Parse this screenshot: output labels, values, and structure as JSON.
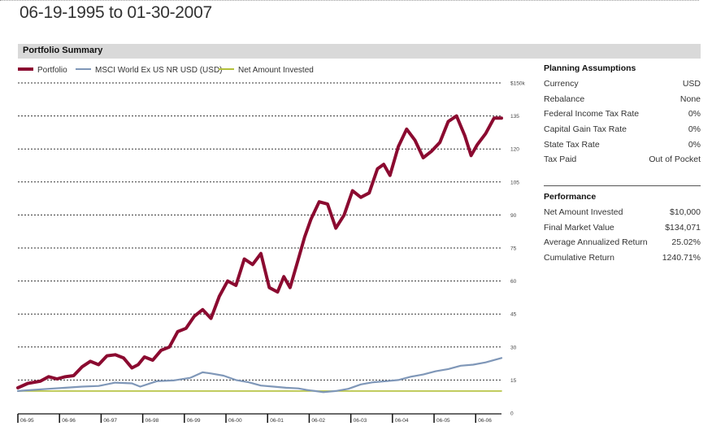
{
  "date_range": "06-19-1995 to 01-30-2007",
  "summary_title": "Portfolio Summary",
  "legend": [
    {
      "label": "Portfolio",
      "color": "#8b0a30"
    },
    {
      "label": "MSCI World Ex US NR USD (USD)",
      "color": "#7f97b8"
    },
    {
      "label": "Net Amount Invested",
      "color": "#b3c03a"
    }
  ],
  "planning": {
    "title": "Planning Assumptions",
    "rows": [
      {
        "label": "Currency",
        "value": "USD"
      },
      {
        "label": "Rebalance",
        "value": "None"
      },
      {
        "label": "Federal Income Tax Rate",
        "value": "0%"
      },
      {
        "label": "Capital Gain Tax Rate",
        "value": "0%"
      },
      {
        "label": "State Tax Rate",
        "value": "0%"
      },
      {
        "label": "Tax Paid",
        "value": "Out of Pocket"
      }
    ]
  },
  "performance": {
    "title": "Performance",
    "rows": [
      {
        "label": "Net Amount Invested",
        "value": "$10,000"
      },
      {
        "label": "Final Market Value",
        "value": "$134,071"
      },
      {
        "label": "Average Annualized Return",
        "value": "25.02%"
      },
      {
        "label": "Cumulative Return",
        "value": "1240.71%"
      }
    ]
  },
  "chart_data": {
    "type": "line",
    "ylim": [
      0,
      150
    ],
    "y_ticks": [
      0,
      15,
      30,
      45,
      60,
      75,
      90,
      105,
      120,
      135,
      150
    ],
    "y_tick_labels": [
      "0",
      "15",
      "30",
      "45",
      "60",
      "75",
      "90",
      "105",
      "120",
      "135",
      "$150k"
    ],
    "xlim": [
      1995.46,
      2007.08
    ],
    "x_ticks": [
      1995.46,
      1996.46,
      1997.46,
      1998.46,
      1999.46,
      2000.46,
      2001.46,
      2002.46,
      2003.46,
      2004.46,
      2005.46,
      2006.46
    ],
    "x_tick_labels": [
      "06-95",
      "06-96",
      "06-97",
      "06-98",
      "06-99",
      "06-00",
      "06-01",
      "06-02",
      "06-03",
      "06-04",
      "06-05",
      "06-06"
    ],
    "grid": "horizontal dotted",
    "legend_position": "top-left",
    "series": [
      {
        "name": "Portfolio",
        "color": "#8b0a30",
        "x": [
          1995.46,
          1995.7,
          1996.0,
          1996.2,
          1996.4,
          1996.6,
          1996.8,
          1997.0,
          1997.2,
          1997.4,
          1997.6,
          1997.8,
          1998.0,
          1998.2,
          1998.35,
          1998.5,
          1998.7,
          1998.9,
          1999.1,
          1999.3,
          1999.5,
          1999.7,
          1999.9,
          2000.1,
          2000.3,
          2000.5,
          2000.7,
          2000.9,
          2001.1,
          2001.3,
          2001.5,
          2001.7,
          2001.85,
          2002.0,
          2002.2,
          2002.35,
          2002.5,
          2002.7,
          2002.9,
          2003.1,
          2003.3,
          2003.5,
          2003.7,
          2003.9,
          2004.1,
          2004.25,
          2004.4,
          2004.6,
          2004.8,
          2005.0,
          2005.2,
          2005.4,
          2005.6,
          2005.8,
          2006.0,
          2006.2,
          2006.35,
          2006.5,
          2006.7,
          2006.9,
          2007.08
        ],
        "values": [
          11.5,
          13.5,
          14.5,
          16.5,
          15.5,
          16.5,
          17.0,
          21.0,
          23.5,
          22.0,
          26.0,
          26.5,
          25.0,
          20.5,
          22.0,
          25.5,
          24.0,
          28.5,
          30.0,
          37.0,
          38.5,
          44.0,
          47.0,
          43.0,
          53.0,
          60.0,
          58.0,
          70.0,
          67.5,
          72.5,
          57.0,
          55.0,
          62.0,
          57.0,
          70.0,
          80.0,
          88.0,
          96.0,
          95.0,
          84.0,
          90.0,
          101.0,
          98.0,
          100.0,
          111.0,
          113.0,
          108.0,
          121.0,
          129.0,
          124.0,
          116.0,
          119.0,
          123.0,
          132.5,
          135.0,
          126.0,
          117.0,
          122.0,
          127.0,
          134.0,
          134.0
        ]
      },
      {
        "name": "MSCI World Ex US NR USD (USD)",
        "color": "#7f97b8",
        "x": [
          1995.46,
          1995.8,
          1996.2,
          1996.6,
          1997.0,
          1997.4,
          1997.8,
          1998.2,
          1998.4,
          1998.8,
          1999.2,
          1999.6,
          1999.9,
          2000.1,
          2000.4,
          2000.7,
          2001.0,
          2001.3,
          2001.6,
          2001.9,
          2002.2,
          2002.4,
          2002.6,
          2002.8,
          2003.1,
          2003.4,
          2003.7,
          2004.0,
          2004.3,
          2004.6,
          2004.9,
          2005.2,
          2005.5,
          2005.8,
          2006.1,
          2006.4,
          2006.7,
          2007.08
        ],
        "values": [
          10.0,
          10.5,
          11.0,
          11.5,
          12.0,
          12.3,
          13.8,
          13.5,
          12.0,
          14.5,
          14.8,
          16.0,
          18.5,
          18.0,
          17.0,
          15.0,
          14.0,
          12.5,
          12.0,
          11.5,
          11.2,
          10.5,
          10.0,
          9.5,
          10.0,
          11.0,
          13.0,
          14.0,
          14.5,
          15.0,
          16.5,
          17.5,
          19.0,
          20.0,
          21.5,
          22.0,
          23.0,
          25.0
        ]
      },
      {
        "name": "Net Amount Invested",
        "color": "#b3c03a",
        "x": [
          1995.46,
          2007.08
        ],
        "values": [
          10.0,
          10.0
        ]
      }
    ]
  }
}
